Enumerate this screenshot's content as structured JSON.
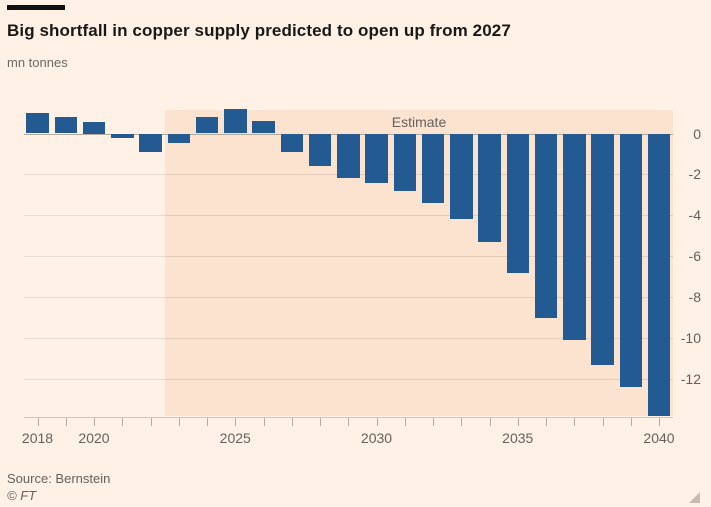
{
  "chart_data": {
    "type": "bar",
    "title": "Big shortfall in copper supply predicted to open up from 2027",
    "units": "mn tonnes",
    "categories": [
      2018,
      2019,
      2020,
      2021,
      2022,
      2023,
      2024,
      2025,
      2026,
      2027,
      2028,
      2029,
      2030,
      2031,
      2032,
      2033,
      2034,
      2035,
      2036,
      2037,
      2038,
      2039,
      2040
    ],
    "values": [
      1.0,
      0.8,
      0.55,
      -0.2,
      -0.9,
      -0.45,
      0.8,
      1.2,
      0.6,
      -0.9,
      -1.6,
      -2.2,
      -2.4,
      -2.8,
      -3.4,
      -4.2,
      -5.3,
      -6.8,
      -9.0,
      -10.1,
      -11.3,
      -12.4,
      -13.8
    ],
    "estimate_from_year": 2023,
    "estimate_label": "Estimate",
    "x_tick_labels": [
      2018,
      2020,
      2025,
      2030,
      2035,
      2040
    ],
    "y_ticks": [
      0,
      -2,
      -4,
      -6,
      -8,
      -10,
      -12
    ],
    "ylim": [
      -13.8,
      1.15
    ],
    "grid": "horizontal",
    "legend": "none",
    "colors": {
      "bar": "#235a92",
      "estimate_band": "#fbe3d0",
      "background": "#fff1e5",
      "axis_text": "#66605c",
      "title_text": "#1a1817",
      "gridline": "rgba(102,96,92,0.16)",
      "zero_line": "#b3a99d",
      "tick": "#b5aca1"
    }
  },
  "footer": {
    "source": "Source: Bernstein",
    "copyright": "© FT"
  }
}
